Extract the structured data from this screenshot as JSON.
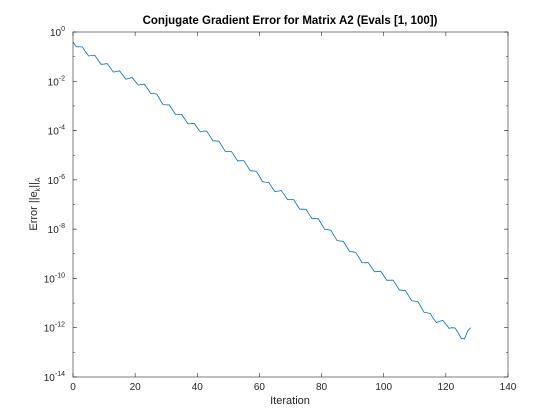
{
  "chart_data": {
    "type": "line",
    "title": "Conjugate Gradient Error for Matrix A2 (Evals [1, 100])",
    "xlabel": "Iteration",
    "ylabel": {
      "prefix": "Error ||e",
      "sub1": "k",
      "mid": "||",
      "sub2": "A"
    },
    "xlim": [
      0,
      140
    ],
    "ylim": [
      1e-14,
      1
    ],
    "yscale": "log",
    "xticks": [
      "0",
      "20",
      "40",
      "60",
      "80",
      "100",
      "120",
      "140"
    ],
    "yticks": [
      {
        "base": "10",
        "exp": "0"
      },
      {
        "base": "10",
        "exp": "-2"
      },
      {
        "base": "10",
        "exp": "-4"
      },
      {
        "base": "10",
        "exp": "-6"
      },
      {
        "base": "10",
        "exp": "-8"
      },
      {
        "base": "10",
        "exp": "-10"
      },
      {
        "base": "10",
        "exp": "-12"
      },
      {
        "base": "10",
        "exp": "-14"
      }
    ],
    "grid": false,
    "series": [
      {
        "color": "#0072BD",
        "points": [
          [
            0,
            0.4
          ],
          [
            2,
            0.25
          ],
          [
            4,
            0.16
          ],
          [
            6,
            0.11
          ],
          [
            8,
            0.075
          ],
          [
            10,
            0.05
          ],
          [
            12,
            0.035
          ],
          [
            14,
            0.025
          ],
          [
            16,
            0.018
          ],
          [
            18,
            0.013
          ],
          [
            20,
            0.01
          ],
          [
            22,
            0.0075
          ],
          [
            24,
            0.005
          ],
          [
            26,
            0.0032
          ],
          [
            28,
            0.0018
          ],
          [
            30,
            0.0011
          ],
          [
            32,
            0.0007
          ],
          [
            34,
            0.00045
          ],
          [
            36,
            0.00029
          ],
          [
            38,
            0.00019
          ],
          [
            40,
            0.00013
          ],
          [
            42,
            9.5e-05
          ],
          [
            44,
            6.2e-05
          ],
          [
            46,
            3.8e-05
          ],
          [
            48,
            2.3e-05
          ],
          [
            50,
            1.4e-05
          ],
          [
            52,
            9e-06
          ],
          [
            54,
            6e-06
          ],
          [
            56,
            3.8e-06
          ],
          [
            58,
            2.3e-06
          ],
          [
            60,
            1.4e-06
          ],
          [
            62,
            8e-07
          ],
          [
            64,
            5e-07
          ],
          [
            66,
            3.5e-07
          ],
          [
            68,
            2.5e-07
          ],
          [
            70,
            1.6e-07
          ],
          [
            72,
            1e-07
          ],
          [
            74,
            6.5e-08
          ],
          [
            76,
            4e-08
          ],
          [
            78,
            2.7e-08
          ],
          [
            80,
            1.6e-08
          ],
          [
            82,
            9.5e-09
          ],
          [
            84,
            5.5e-09
          ],
          [
            86,
            3.3e-09
          ],
          [
            88,
            2e-09
          ],
          [
            90,
            1.2e-09
          ],
          [
            92,
            7e-10
          ],
          [
            94,
            4.3e-10
          ],
          [
            96,
            2.9e-10
          ],
          [
            98,
            1.9e-10
          ],
          [
            100,
            1.3e-10
          ],
          [
            102,
            8.5e-11
          ],
          [
            104,
            5.5e-11
          ],
          [
            106,
            3.3e-11
          ],
          [
            108,
            2e-11
          ],
          [
            110,
            1.2e-11
          ],
          [
            112,
            7e-12
          ],
          [
            114,
            4e-12
          ],
          [
            116,
            2.3e-12
          ],
          [
            118,
            1.8e-12
          ],
          [
            120,
            1.4e-12
          ],
          [
            122,
            1e-12
          ],
          [
            124,
            6e-13
          ],
          [
            126,
            3.5e-13
          ],
          [
            128,
            1e-12
          ]
        ]
      }
    ]
  }
}
